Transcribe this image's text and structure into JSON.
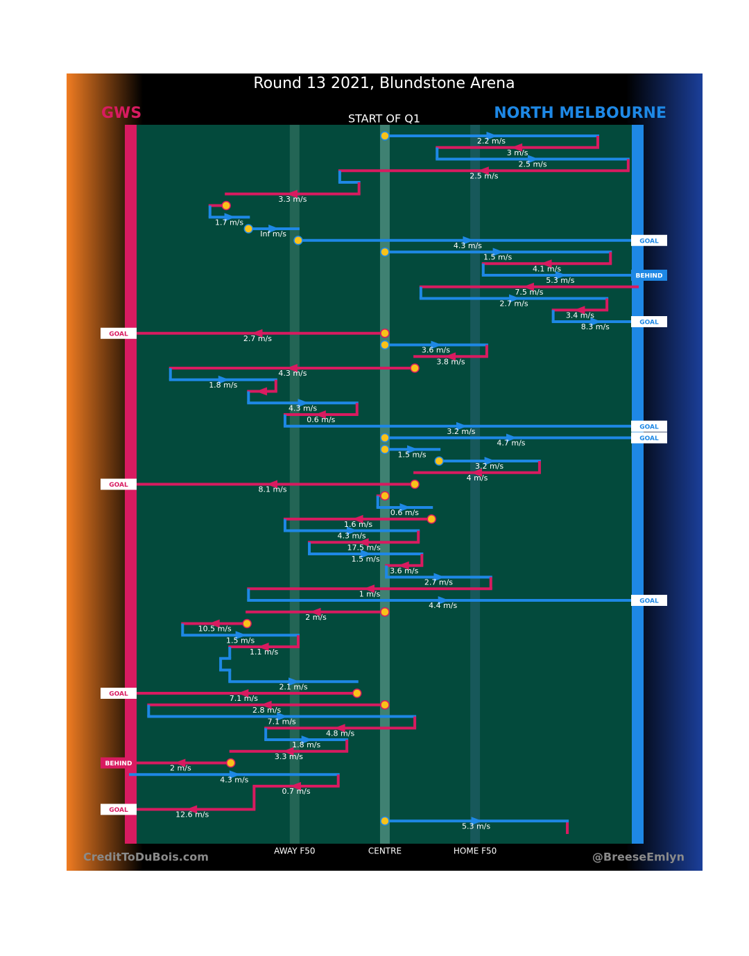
{
  "header": {
    "title": "Round 13 2021, Blundstone Arena",
    "start_label": "START OF Q1"
  },
  "teams": [
    {
      "name": "GWS",
      "color": "#d81b60"
    },
    {
      "name": "NORTH MELBOURNE",
      "color": "#1e88e5"
    }
  ],
  "field": {
    "xlim": [
      0,
      100
    ],
    "lines": [
      {
        "value": 32.4,
        "label": "AWAY F50"
      },
      {
        "value": 50.2,
        "label": "CENTRE"
      },
      {
        "value": 68,
        "label": "HOME F50"
      }
    ]
  },
  "rows": [
    {
      "team": 1,
      "from": 50.2,
      "to": 92.2,
      "speed": "2.2 m/s",
      "start": true
    },
    {
      "team": 0,
      "from": 92.2,
      "to": 60.5,
      "speed": "3 m/s"
    },
    {
      "team": 1,
      "from": 60.5,
      "to": 98.2,
      "speed": "2.5 m/s"
    },
    {
      "team": 0,
      "from": 98.2,
      "to": 41.3,
      "speed": "2.5 m/s"
    },
    {
      "team": 1,
      "from": 41.3,
      "to": 45.1
    },
    {
      "team": 0,
      "from": 45.1,
      "to": 18.9,
      "speed": "3.3 m/s"
    },
    {
      "team": 0,
      "from": 18.9,
      "to": 15.7,
      "start": true
    },
    {
      "team": 1,
      "from": 15.7,
      "to": 23.3,
      "speed": "1.7 m/s"
    },
    {
      "team": 1,
      "from": 23.3,
      "to": 33.1,
      "speed": "Inf m/s",
      "start": true
    },
    {
      "team": 1,
      "from": 33.1,
      "to": 100,
      "speed": "4.3 m/s",
      "start": true,
      "result": "GOAL"
    },
    {
      "team": 1,
      "from": 50.2,
      "to": 94.7,
      "speed": "1.5 m/s",
      "start": true
    },
    {
      "team": 0,
      "from": 94.7,
      "to": 69.6,
      "speed": "4.1 m/s"
    },
    {
      "team": 1,
      "from": 69.6,
      "to": 100,
      "speed": "5.3 m/s",
      "result": "BEHIND"
    },
    {
      "team": 0,
      "from": 100,
      "to": 57.3,
      "speed": "7.5 m/s"
    },
    {
      "team": 1,
      "from": 57.3,
      "to": 94.0,
      "speed": "2.7 m/s"
    },
    {
      "team": 0,
      "from": 94.0,
      "to": 83.4,
      "speed": "3.4 m/s"
    },
    {
      "team": 1,
      "from": 83.4,
      "to": 100,
      "speed": "8.3 m/s",
      "result": "GOAL"
    },
    {
      "team": 0,
      "from": 50.2,
      "to": 0,
      "speed": "2.7 m/s",
      "start": true,
      "result": "GOAL"
    },
    {
      "team": 1,
      "from": 50.2,
      "to": 70.3,
      "speed": "3.6 m/s",
      "start": true
    },
    {
      "team": 0,
      "from": 70.3,
      "to": 56.1,
      "speed": "3.8 m/s"
    },
    {
      "team": 0,
      "from": 56.1,
      "to": 7.9,
      "speed": "4.3 m/s",
      "start": true
    },
    {
      "team": 1,
      "from": 7.9,
      "to": 28.7,
      "speed": "1.8 m/s"
    },
    {
      "team": 0,
      "from": 28.7,
      "to": 23.3
    },
    {
      "team": 1,
      "from": 23.3,
      "to": 44.7,
      "speed": "4.3 m/s"
    },
    {
      "team": 0,
      "from": 44.7,
      "to": 30.5,
      "speed": "0.6 m/s"
    },
    {
      "team": 1,
      "from": 30.5,
      "to": 100,
      "speed": "3.2 m/s",
      "result": "GOAL"
    },
    {
      "team": 1,
      "from": 50.2,
      "to": 100,
      "speed": "4.7 m/s",
      "start": true,
      "result": "GOAL"
    },
    {
      "team": 1,
      "from": 50.2,
      "to": 60.9,
      "speed": "1.5 m/s",
      "start": true
    },
    {
      "team": 1,
      "from": 60.9,
      "to": 80.7,
      "speed": "3.2 m/s",
      "start": true
    },
    {
      "team": 0,
      "from": 80.7,
      "to": 56.1,
      "speed": "4 m/s"
    },
    {
      "team": 0,
      "from": 56.1,
      "to": 0,
      "speed": "8.1 m/s",
      "start": true,
      "result": "GOAL"
    },
    {
      "team": 0,
      "from": 50.2,
      "to": 48.8,
      "start": true
    },
    {
      "team": 1,
      "from": 48.8,
      "to": 59.4,
      "speed": "0.6 m/s"
    },
    {
      "team": 0,
      "from": 59.4,
      "to": 30.5,
      "speed": "1.6 m/s",
      "start": true
    },
    {
      "team": 1,
      "from": 30.5,
      "to": 56.8,
      "speed": "4.3 m/s"
    },
    {
      "team": 0,
      "from": 56.8,
      "to": 35.3,
      "speed": "17.5 m/s"
    },
    {
      "team": 1,
      "from": 35.3,
      "to": 57.5,
      "speed": "1.5 m/s"
    },
    {
      "team": 0,
      "from": 57.5,
      "to": 50.5,
      "speed": "3.6 m/s"
    },
    {
      "team": 1,
      "from": 50.5,
      "to": 71.1,
      "speed": "2.7 m/s"
    },
    {
      "team": 0,
      "from": 71.1,
      "to": 23.3,
      "speed": "1 m/s"
    },
    {
      "team": 1,
      "from": 23.3,
      "to": 100,
      "speed": "4.4 m/s",
      "result": "GOAL"
    },
    {
      "team": 0,
      "from": 50.2,
      "to": 23.0,
      "speed": "2 m/s",
      "start": true
    },
    {
      "team": 0,
      "from": 23.0,
      "to": 10.3,
      "speed": "10.5 m/s",
      "start": true
    },
    {
      "team": 1,
      "from": 10.3,
      "to": 33.1,
      "speed": "1.5 m/s"
    },
    {
      "team": 0,
      "from": 33.1,
      "to": 19.6,
      "speed": "1.1 m/s"
    },
    {
      "team": 1,
      "from": 19.6,
      "to": 17.8
    },
    {
      "team": 1,
      "from": 17.8,
      "to": 19.6
    },
    {
      "team": 1,
      "from": 19.6,
      "to": 44.7,
      "speed": "2.1 m/s"
    },
    {
      "team": 0,
      "from": 44.7,
      "to": 0,
      "speed": "7.1 m/s",
      "start": true,
      "result": "GOAL"
    },
    {
      "team": 0,
      "from": 50.2,
      "to": 3.6,
      "speed": "2.8 m/s",
      "start": true
    },
    {
      "team": 1,
      "from": 3.6,
      "to": 56.1,
      "speed": "7.1 m/s"
    },
    {
      "team": 0,
      "from": 56.1,
      "to": 26.7,
      "speed": "4.8 m/s"
    },
    {
      "team": 1,
      "from": 26.7,
      "to": 42.7,
      "speed": "1.8 m/s"
    },
    {
      "team": 0,
      "from": 42.7,
      "to": 19.8,
      "speed": "3.3 m/s"
    },
    {
      "team": 0,
      "from": 19.8,
      "to": 0,
      "speed": "2 m/s",
      "start": true,
      "result": "BEHIND"
    },
    {
      "team": 1,
      "from": 0,
      "to": 41.0,
      "speed": "4.3 m/s"
    },
    {
      "team": 0,
      "from": 41.0,
      "to": 24.4,
      "speed": "0.7 m/s"
    },
    null,
    {
      "team": 0,
      "from": 24.4,
      "to": 0,
      "speed": "12.6 m/s",
      "result": "GOAL"
    },
    {
      "team": 1,
      "from": 50.2,
      "to": 86.2,
      "speed": "5.3 m/s",
      "start": true
    }
  ],
  "footer": {
    "left": "CreditToDuBois.com",
    "right": "@BreeseEmlyn"
  }
}
